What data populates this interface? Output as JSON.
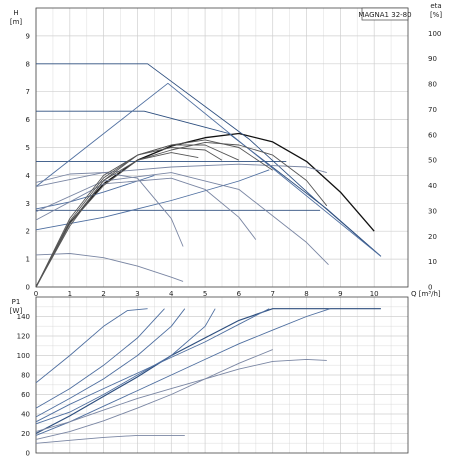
{
  "chart_data": [
    {
      "type": "line",
      "title": "MAGNA1 32-80",
      "ylabel_left": [
        "H",
        "[m]"
      ],
      "ylabel_right": [
        "eta",
        "[%]"
      ],
      "xlabel": "Q [m³/h]",
      "xlim": [
        0,
        11
      ],
      "ylim_left": [
        0,
        10
      ],
      "ylim_right": [
        0,
        110
      ],
      "xticks": [
        0,
        1,
        2,
        3,
        4,
        5,
        6,
        7,
        8,
        9,
        10
      ],
      "yticks_left": [
        0,
        1,
        2,
        3,
        4,
        5,
        6,
        7,
        8,
        9
      ],
      "yticks_right": [
        0,
        10,
        20,
        30,
        40,
        50,
        60,
        70,
        80,
        90,
        100
      ],
      "grid": true,
      "series": [
        {
          "group": "head-max",
          "color": "#111111",
          "x": [
            0,
            1,
            2,
            3,
            4,
            5,
            6,
            7,
            8,
            9,
            10
          ],
          "y": [
            0,
            2.3,
            3.7,
            4.55,
            5.05,
            5.35,
            5.5,
            5.2,
            4.5,
            3.4,
            2.0
          ]
        },
        {
          "group": "head-const-p",
          "color": "#2e4f7f",
          "x": [
            0,
            3.3,
            6.3,
            8.2,
            10.2
          ],
          "y": [
            8,
            8,
            5.3,
            3.2,
            1.1
          ]
        },
        {
          "group": "head-const-p",
          "color": "#2e4f7f",
          "x": [
            0,
            3.2,
            5.7,
            8.6,
            10.2
          ],
          "y": [
            6.3,
            6.3,
            5.5,
            2.8,
            1.1
          ]
        },
        {
          "group": "head-const-p",
          "color": "#2e4f7f",
          "x": [
            0,
            5.8,
            7.4
          ],
          "y": [
            4.5,
            4.5,
            4.5
          ]
        },
        {
          "group": "head-const-p",
          "color": "#2e4f7f",
          "x": [
            0,
            8.4
          ],
          "y": [
            2.75,
            2.75
          ]
        },
        {
          "group": "head-prop-p",
          "color": "#4f6fa0",
          "x": [
            0,
            3.9,
            10.2
          ],
          "y": [
            3.6,
            7.3,
            1.1
          ]
        },
        {
          "group": "head-prop-p",
          "color": "#4f6fa0",
          "x": [
            0,
            2,
            4,
            6,
            6.9
          ],
          "y": [
            2.05,
            2.5,
            3.1,
            3.8,
            4.2
          ]
        },
        {
          "group": "head-prop-p",
          "color": "#4f6fa0",
          "x": [
            0,
            1,
            2,
            3,
            3.5
          ],
          "y": [
            2.8,
            3.05,
            3.4,
            3.8,
            4.0
          ]
        },
        {
          "group": "head-const-curve",
          "color": "#7a86a3",
          "x": [
            0,
            1,
            2,
            3,
            4,
            4.35
          ],
          "y": [
            3.75,
            4.05,
            4.1,
            3.9,
            2.45,
            1.45
          ]
        },
        {
          "group": "head-const-curve",
          "color": "#7a86a3",
          "x": [
            0,
            1,
            2,
            3,
            4,
            4.35
          ],
          "y": [
            1.15,
            1.2,
            1.05,
            0.75,
            0.35,
            0.2
          ]
        },
        {
          "group": "head-const-curve",
          "color": "#7a86a3",
          "x": [
            0,
            2,
            4,
            6,
            8,
            8.65
          ],
          "y": [
            2.7,
            3.8,
            4.1,
            3.5,
            1.6,
            0.8
          ]
        },
        {
          "group": "head-const-curve",
          "color": "#7a86a3",
          "x": [
            0,
            2,
            4,
            6,
            8,
            8.6
          ],
          "y": [
            3.6,
            4.1,
            4.3,
            4.4,
            4.3,
            4.1
          ]
        },
        {
          "group": "head-const-curve",
          "color": "#7a86a3",
          "x": [
            0,
            2,
            4,
            5,
            6,
            6.5
          ],
          "y": [
            2.4,
            3.7,
            3.9,
            3.5,
            2.5,
            1.7
          ]
        },
        {
          "group": "eta",
          "color": "#555555",
          "x": [
            0,
            1,
            2,
            3,
            4,
            5,
            6,
            7,
            8,
            8.6
          ],
          "y": [
            0,
            25,
            40,
            50,
            54,
            57,
            56,
            52,
            42,
            32
          ]
        },
        {
          "group": "eta",
          "color": "#555555",
          "x": [
            0,
            1,
            2,
            3,
            4,
            5,
            6,
            7
          ],
          "y": [
            0,
            24,
            42,
            52,
            56,
            58,
            55,
            46
          ]
        },
        {
          "group": "eta",
          "color": "#555555",
          "x": [
            0,
            1,
            2,
            3,
            4,
            5,
            6
          ],
          "y": [
            0,
            26,
            43,
            52,
            56,
            56,
            50
          ]
        },
        {
          "group": "eta",
          "color": "#555555",
          "x": [
            0,
            1,
            2,
            3,
            4,
            5,
            5.5
          ],
          "y": [
            0,
            27,
            44,
            52,
            55,
            54,
            50
          ]
        },
        {
          "group": "eta",
          "color": "#555555",
          "x": [
            0,
            1,
            2,
            3,
            4,
            4.8
          ],
          "y": [
            0,
            25,
            42,
            50,
            53,
            51
          ]
        }
      ]
    },
    {
      "type": "line",
      "ylabel_left": [
        "P1",
        "[W]"
      ],
      "xlim": [
        0,
        11
      ],
      "ylim_left": [
        0,
        160
      ],
      "yticks_left": [
        0,
        20,
        40,
        60,
        80,
        100,
        120,
        140
      ],
      "xticks": [
        0,
        1,
        2,
        3,
        4,
        5,
        6,
        7,
        8,
        9,
        10
      ],
      "grid": true,
      "series": [
        {
          "group": "power-max",
          "color": "#2e4f7f",
          "x": [
            0,
            1,
            2,
            3,
            4,
            5,
            6,
            7,
            8,
            9,
            10.2
          ],
          "y": [
            20,
            38,
            58,
            78,
            100,
            118,
            136,
            148,
            148,
            148,
            148
          ]
        },
        {
          "group": "power",
          "color": "#4f6fa0",
          "x": [
            0,
            1,
            2,
            3,
            4,
            5,
            6,
            7,
            8,
            8.7
          ],
          "y": [
            18,
            32,
            48,
            64,
            80,
            96,
            112,
            126,
            140,
            148
          ]
        },
        {
          "group": "power",
          "color": "#4f6fa0",
          "x": [
            0,
            1,
            2,
            3,
            4,
            5,
            6,
            6.9
          ],
          "y": [
            32,
            50,
            66,
            82,
            98,
            114,
            132,
            148
          ]
        },
        {
          "group": "power",
          "color": "#4f6fa0",
          "x": [
            0,
            1,
            2,
            3,
            4,
            5,
            5.3
          ],
          "y": [
            30,
            42,
            60,
            80,
            100,
            130,
            148
          ]
        },
        {
          "group": "power",
          "color": "#4f6fa0",
          "x": [
            0,
            1,
            2,
            3,
            4,
            4.4
          ],
          "y": [
            37,
            56,
            76,
            100,
            130,
            148
          ]
        },
        {
          "group": "power",
          "color": "#4f6fa0",
          "x": [
            0,
            1,
            2,
            3,
            3.8
          ],
          "y": [
            46,
            66,
            90,
            118,
            148
          ]
        },
        {
          "group": "power",
          "color": "#4f6fa0",
          "x": [
            0,
            1,
            2,
            2.7,
            3.3
          ],
          "y": [
            72,
            100,
            130,
            146,
            148
          ]
        },
        {
          "group": "power-const",
          "color": "#7a86a3",
          "x": [
            0,
            1,
            2,
            3,
            4,
            5,
            6,
            7,
            8,
            8.6
          ],
          "y": [
            22,
            32,
            44,
            56,
            66,
            76,
            86,
            94,
            96,
            95
          ]
        },
        {
          "group": "power-const",
          "color": "#7a86a3",
          "x": [
            0,
            1,
            2,
            3,
            4,
            4.4
          ],
          "y": [
            10,
            13,
            16,
            18,
            18,
            18
          ]
        },
        {
          "group": "power-const",
          "color": "#7a86a3",
          "x": [
            0,
            1,
            2,
            3,
            4,
            5,
            6,
            7
          ],
          "y": [
            14,
            22,
            33,
            46,
            60,
            76,
            92,
            106
          ]
        }
      ]
    }
  ]
}
